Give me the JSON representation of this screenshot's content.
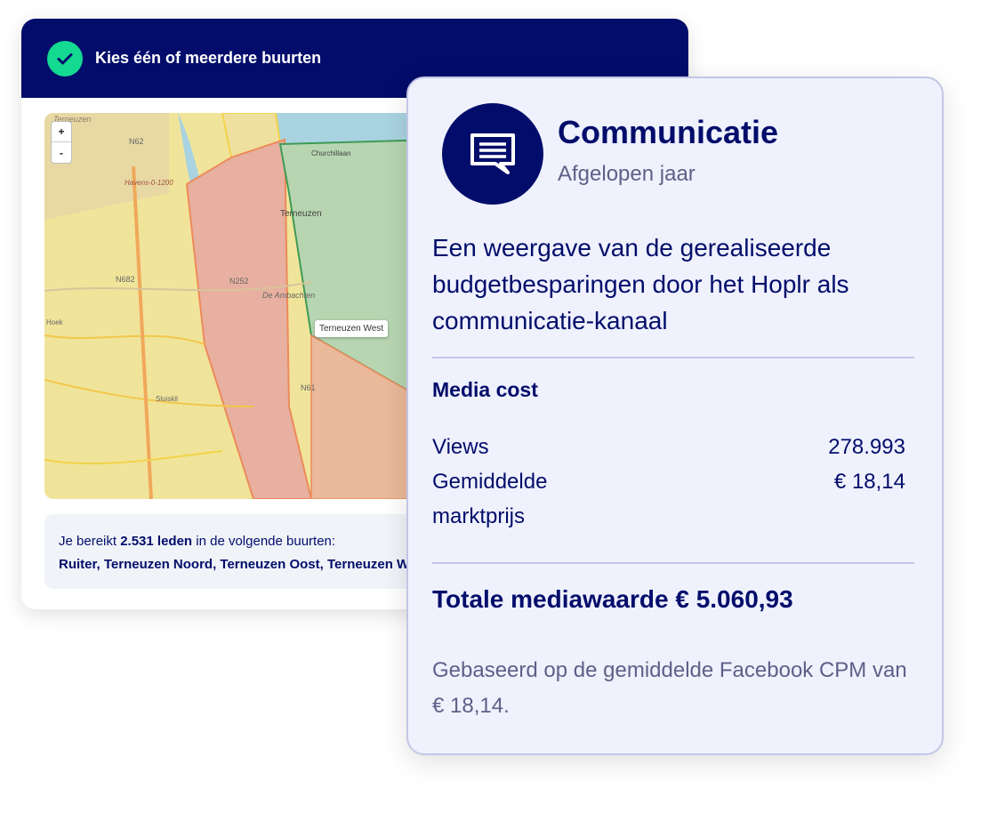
{
  "selector_card": {
    "title": "Kies één of meerdere buurten",
    "map": {
      "zoom_in": "+",
      "zoom_out": "-",
      "tooltip": "Terneuzen West",
      "labels": [
        "Terneuzen",
        "N62",
        "Havens-0-1200",
        "N682",
        "N252",
        "De Ambachten",
        "Terneuzen",
        "Churchillaan",
        "N61",
        "Sluiskil",
        "Hoek"
      ]
    },
    "reach_prefix": "Je bereikt ",
    "reach_count": "2.531 leden",
    "reach_suffix": " in de volgende buurten:",
    "neighbourhoods": "Ruiter, Terneuzen Noord, Terneuzen Oost, Terneuzen West"
  },
  "info_card": {
    "icon": "message-icon",
    "title": "Communicatie",
    "subtitle": "Afgelopen jaar",
    "description": "Een weergave van de gerealiseerde budgetbesparingen door het Hoplr als communicatie-kanaal",
    "section_title": "Media cost",
    "rows": [
      {
        "label": "Views",
        "value": "278.993"
      },
      {
        "label": "Gemiddelde marktprijs",
        "value": "€ 18,14"
      }
    ],
    "total": "Totale mediawaarde € 5.060,93",
    "note": "Gebaseerd op de gemiddelde Facebook CPM van € 18,14."
  },
  "colors": {
    "navy": "#020d6b",
    "green": "#14d991",
    "card_bg": "#eff1fd"
  }
}
